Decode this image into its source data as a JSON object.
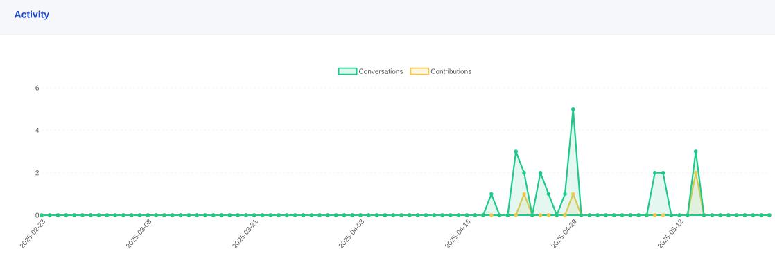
{
  "chart_data": {
    "type": "area",
    "title": "Activity",
    "x": [
      "2025-02-23",
      "2025-02-24",
      "2025-02-25",
      "2025-02-26",
      "2025-02-27",
      "2025-02-28",
      "2025-03-01",
      "2025-03-02",
      "2025-03-03",
      "2025-03-04",
      "2025-03-05",
      "2025-03-06",
      "2025-03-07",
      "2025-03-08",
      "2025-03-09",
      "2025-03-10",
      "2025-03-11",
      "2025-03-12",
      "2025-03-13",
      "2025-03-14",
      "2025-03-15",
      "2025-03-16",
      "2025-03-17",
      "2025-03-18",
      "2025-03-19",
      "2025-03-20",
      "2025-03-21",
      "2025-03-22",
      "2025-03-23",
      "2025-03-24",
      "2025-03-25",
      "2025-03-26",
      "2025-03-27",
      "2025-03-28",
      "2025-03-29",
      "2025-03-30",
      "2025-03-31",
      "2025-04-01",
      "2025-04-02",
      "2025-04-03",
      "2025-04-04",
      "2025-04-05",
      "2025-04-06",
      "2025-04-07",
      "2025-04-08",
      "2025-04-09",
      "2025-04-10",
      "2025-04-11",
      "2025-04-12",
      "2025-04-13",
      "2025-04-14",
      "2025-04-15",
      "2025-04-16",
      "2025-04-17",
      "2025-04-18",
      "2025-04-19",
      "2025-04-20",
      "2025-04-21",
      "2025-04-22",
      "2025-04-23",
      "2025-04-24",
      "2025-04-25",
      "2025-04-26",
      "2025-04-27",
      "2025-04-28",
      "2025-04-29",
      "2025-04-30",
      "2025-05-01",
      "2025-05-02",
      "2025-05-03",
      "2025-05-04",
      "2025-05-05",
      "2025-05-06",
      "2025-05-07",
      "2025-05-08",
      "2025-05-09",
      "2025-05-10",
      "2025-05-11",
      "2025-05-12",
      "2025-05-13",
      "2025-05-14",
      "2025-05-15",
      "2025-05-16",
      "2025-05-17",
      "2025-05-18",
      "2025-05-19",
      "2025-05-20",
      "2025-05-21",
      "2025-05-22",
      "2025-05-23"
    ],
    "series": [
      {
        "name": "Conversations",
        "color": "#1ec98a",
        "values": [
          0,
          0,
          0,
          0,
          0,
          0,
          0,
          0,
          0,
          0,
          0,
          0,
          0,
          0,
          0,
          0,
          0,
          0,
          0,
          0,
          0,
          0,
          0,
          0,
          0,
          0,
          0,
          0,
          0,
          0,
          0,
          0,
          0,
          0,
          0,
          0,
          0,
          0,
          0,
          0,
          0,
          0,
          0,
          0,
          0,
          0,
          0,
          0,
          0,
          0,
          0,
          0,
          0,
          0,
          0,
          1,
          0,
          0,
          3,
          2,
          0,
          2,
          1,
          0,
          1,
          5,
          0,
          0,
          0,
          0,
          0,
          0,
          0,
          0,
          0,
          2,
          2,
          0,
          0,
          0,
          3,
          0,
          0,
          0,
          0,
          0,
          0,
          0,
          0,
          0
        ]
      },
      {
        "name": "Contributions",
        "color": "#f2c94c",
        "values": [
          0,
          0,
          0,
          0,
          0,
          0,
          0,
          0,
          0,
          0,
          0,
          0,
          0,
          0,
          0,
          0,
          0,
          0,
          0,
          0,
          0,
          0,
          0,
          0,
          0,
          0,
          0,
          0,
          0,
          0,
          0,
          0,
          0,
          0,
          0,
          0,
          0,
          0,
          0,
          0,
          0,
          0,
          0,
          0,
          0,
          0,
          0,
          0,
          0,
          0,
          0,
          0,
          0,
          0,
          0,
          0,
          0,
          0,
          0,
          1,
          0,
          0,
          0,
          0,
          0,
          1,
          0,
          0,
          0,
          0,
          0,
          0,
          0,
          0,
          0,
          0,
          0,
          0,
          0,
          0,
          2,
          0,
          0,
          0,
          0,
          0,
          0,
          0,
          0,
          0
        ]
      }
    ],
    "xlim": [
      "2025-02-23",
      "2025-05-23"
    ],
    "xticks": [
      "2025-02-23",
      "2025-03-08",
      "2025-03-21",
      "2025-04-03",
      "2025-04-16",
      "2025-04-29",
      "2025-05-12"
    ],
    "ylim": [
      0,
      6
    ],
    "yticks": [
      0,
      2,
      4,
      6
    ],
    "grid": "y",
    "legend": "top",
    "marker": "circle",
    "line_style": "solid"
  }
}
